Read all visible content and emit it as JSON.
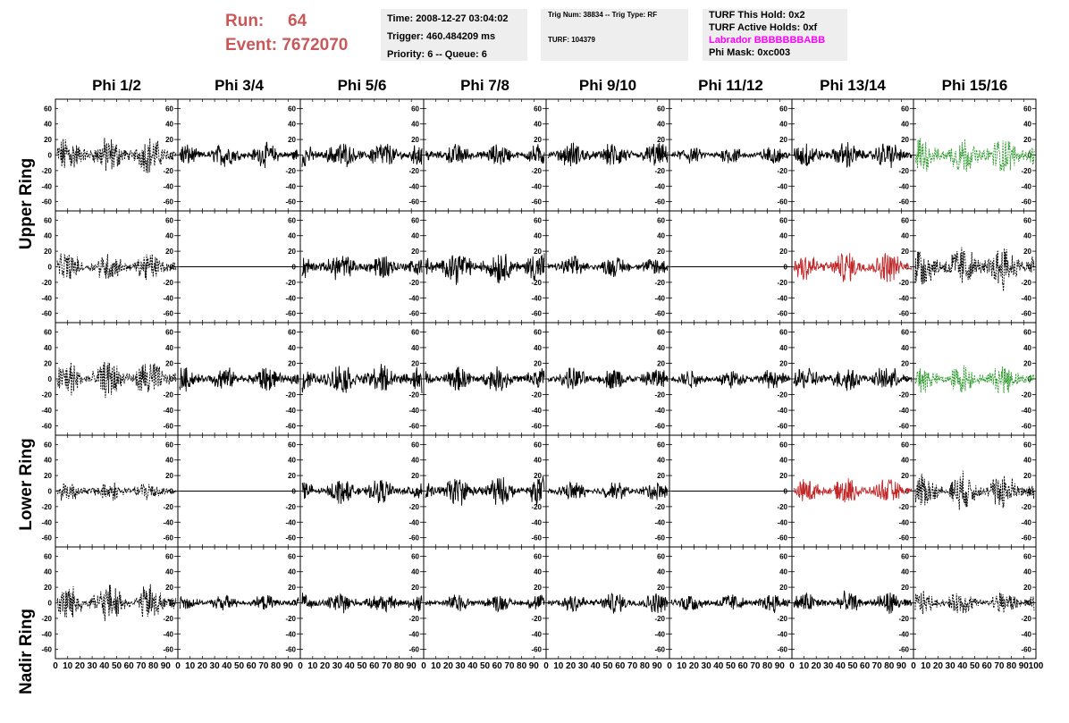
{
  "header": {
    "run_label": "Run:",
    "run_value": "64",
    "event_label": "Event:",
    "event_value": "7672070",
    "time_text": "Time: 2008-12-27 03:04:02",
    "trigger_text": "Trigger: 460.484209 ms",
    "priority_text": "Priority: 6 -- Queue: 6",
    "trig_num_text": "Trig Num: 38834 -- Trig Type: RF",
    "turf_text": "TURF: 104379",
    "turf_this_hold": "TURF This Hold: 0x2",
    "turf_active_holds": "TURF Active Holds: 0xf",
    "labrador": "Labrador BBBBBBBABB",
    "phi_mask": "Phi Mask: 0xc003"
  },
  "colors": {
    "title_red": "#c8585a",
    "labrador_magenta": "#ff00ff",
    "trace_black": "#000000",
    "trace_green": "#2e9a2e",
    "trace_red": "#c0282a",
    "info_bg": "#eeeeee"
  },
  "columns": [
    "Phi 1/2",
    "Phi 3/4",
    "Phi 5/6",
    "Phi 7/8",
    "Phi 9/10",
    "Phi 11/12",
    "Phi 13/14",
    "Phi 15/16"
  ],
  "rings": [
    "Upper Ring",
    "Lower Ring",
    "Nadir Ring"
  ],
  "chart_data": {
    "type": "line",
    "xlim": [
      0,
      100
    ],
    "ylim": [
      -65,
      65
    ],
    "x_ticks": [
      "0",
      "10",
      "20",
      "30",
      "40",
      "50",
      "60",
      "70",
      "80",
      "90",
      "100"
    ],
    "y_ticks": [
      "60",
      "40",
      "20",
      "0",
      "-20",
      "-40",
      "-60"
    ],
    "panels": [
      {
        "row": 0,
        "col": 0,
        "style": "dashed",
        "color": "black",
        "amplitude": 22
      },
      {
        "row": 0,
        "col": 1,
        "style": "solid",
        "color": "black",
        "amplitude": 14
      },
      {
        "row": 0,
        "col": 2,
        "style": "solid",
        "color": "black",
        "amplitude": 16
      },
      {
        "row": 0,
        "col": 3,
        "style": "solid",
        "color": "black",
        "amplitude": 13
      },
      {
        "row": 0,
        "col": 4,
        "style": "solid",
        "color": "black",
        "amplitude": 15
      },
      {
        "row": 0,
        "col": 5,
        "style": "solid",
        "color": "black",
        "amplitude": 10
      },
      {
        "row": 0,
        "col": 6,
        "style": "solid",
        "color": "black",
        "amplitude": 16
      },
      {
        "row": 0,
        "col": 7,
        "style": "dashed",
        "color": "green",
        "amplitude": 22
      },
      {
        "row": 1,
        "col": 0,
        "style": "dashed",
        "color": "black",
        "amplitude": 17
      },
      {
        "row": 1,
        "col": 1,
        "style": "flat",
        "color": "black",
        "amplitude": 0
      },
      {
        "row": 1,
        "col": 2,
        "style": "solid",
        "color": "black",
        "amplitude": 16
      },
      {
        "row": 1,
        "col": 3,
        "style": "solid",
        "color": "black",
        "amplitude": 20
      },
      {
        "row": 1,
        "col": 4,
        "style": "solid",
        "color": "black",
        "amplitude": 12
      },
      {
        "row": 1,
        "col": 5,
        "style": "flat",
        "color": "black",
        "amplitude": 0
      },
      {
        "row": 1,
        "col": 6,
        "style": "solid",
        "color": "red",
        "amplitude": 18
      },
      {
        "row": 1,
        "col": 7,
        "style": "dashed",
        "color": "black",
        "amplitude": 26
      },
      {
        "row": 2,
        "col": 0,
        "style": "dashed",
        "color": "black",
        "amplitude": 22
      },
      {
        "row": 2,
        "col": 1,
        "style": "solid",
        "color": "black",
        "amplitude": 14
      },
      {
        "row": 2,
        "col": 2,
        "style": "solid",
        "color": "black",
        "amplitude": 18
      },
      {
        "row": 2,
        "col": 3,
        "style": "solid",
        "color": "black",
        "amplitude": 14
      },
      {
        "row": 2,
        "col": 4,
        "style": "solid",
        "color": "black",
        "amplitude": 13
      },
      {
        "row": 2,
        "col": 5,
        "style": "solid",
        "color": "black",
        "amplitude": 11
      },
      {
        "row": 2,
        "col": 6,
        "style": "solid",
        "color": "black",
        "amplitude": 15
      },
      {
        "row": 2,
        "col": 7,
        "style": "dashed",
        "color": "green",
        "amplitude": 17
      },
      {
        "row": 3,
        "col": 0,
        "style": "dashed",
        "color": "black",
        "amplitude": 12
      },
      {
        "row": 3,
        "col": 1,
        "style": "flat",
        "color": "black",
        "amplitude": 0
      },
      {
        "row": 3,
        "col": 2,
        "style": "solid",
        "color": "black",
        "amplitude": 14
      },
      {
        "row": 3,
        "col": 3,
        "style": "solid",
        "color": "black",
        "amplitude": 17
      },
      {
        "row": 3,
        "col": 4,
        "style": "solid",
        "color": "black",
        "amplitude": 11
      },
      {
        "row": 3,
        "col": 5,
        "style": "flat",
        "color": "black",
        "amplitude": 0
      },
      {
        "row": 3,
        "col": 6,
        "style": "solid",
        "color": "red",
        "amplitude": 15
      },
      {
        "row": 3,
        "col": 7,
        "style": "dashed",
        "color": "black",
        "amplitude": 22
      },
      {
        "row": 4,
        "col": 0,
        "style": "dashed",
        "color": "black",
        "amplitude": 22
      },
      {
        "row": 4,
        "col": 1,
        "style": "solid",
        "color": "black",
        "amplitude": 9
      },
      {
        "row": 4,
        "col": 2,
        "style": "solid",
        "color": "black",
        "amplitude": 12
      },
      {
        "row": 4,
        "col": 3,
        "style": "solid",
        "color": "black",
        "amplitude": 10
      },
      {
        "row": 4,
        "col": 4,
        "style": "solid",
        "color": "black",
        "amplitude": 12
      },
      {
        "row": 4,
        "col": 5,
        "style": "solid",
        "color": "black",
        "amplitude": 11
      },
      {
        "row": 4,
        "col": 6,
        "style": "solid",
        "color": "black",
        "amplitude": 13
      },
      {
        "row": 4,
        "col": 7,
        "style": "dashed",
        "color": "black",
        "amplitude": 14
      }
    ]
  }
}
